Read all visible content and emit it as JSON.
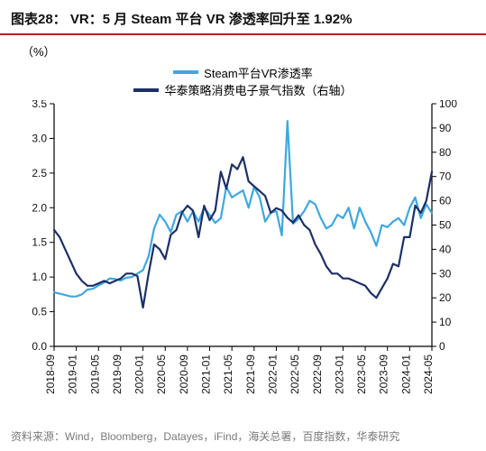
{
  "title": "图表28：  VR：5 月 Steam 平台 VR 渗透率回升至 1.92%",
  "title_fontsize": 15,
  "title_color": "#111111",
  "title_underline_color": "#b02323",
  "legend": {
    "fontsize": 13,
    "text_color": "#111111",
    "items": [
      {
        "label": "Steam平台VR渗透率",
        "color": "#3fa7e0"
      },
      {
        "label": "华泰策略消费电子景气指数（右轴）",
        "color": "#1c2f66"
      }
    ]
  },
  "chart": {
    "type": "line",
    "background_color": "#ffffff",
    "border_color": "#000000",
    "border_width": 1.2,
    "plot_left_border": true,
    "plot_right_border": true,
    "plot_bottom_border": true,
    "plot_top_border": false,
    "y_left": {
      "label": "（%）",
      "label_fontsize": 13,
      "min": 0.0,
      "max": 3.5,
      "tick_step": 0.5,
      "ticks": [
        "0.0",
        "0.5",
        "1.0",
        "1.5",
        "2.0",
        "2.5",
        "3.0",
        "3.5"
      ],
      "tick_fontsize": 12,
      "tick_color": "#111111"
    },
    "y_right": {
      "min": 0,
      "max": 100,
      "tick_step": 10,
      "ticks": [
        "0",
        "10",
        "20",
        "30",
        "40",
        "50",
        "60",
        "70",
        "80",
        "90",
        "100"
      ],
      "tick_fontsize": 12,
      "tick_color": "#111111"
    },
    "x": {
      "tick_labels": [
        "2018-09",
        "2019-01",
        "2019-05",
        "2019-09",
        "2020-01",
        "2020-05",
        "2020-09",
        "2021-01",
        "2021-05",
        "2021-09",
        "2022-01",
        "2022-05",
        "2022-09",
        "2023-01",
        "2023-05",
        "2023-09",
        "2024-01",
        "2024-05"
      ],
      "tick_rotation": -90,
      "tick_fontsize": 12,
      "tick_color": "#111111"
    },
    "series": [
      {
        "name": "Steam平台VR渗透率",
        "axis": "left",
        "color": "#3fa7e0",
        "line_width": 2.2,
        "values": [
          0.78,
          0.76,
          0.74,
          0.72,
          0.72,
          0.75,
          0.82,
          0.83,
          0.88,
          0.92,
          0.98,
          0.97,
          0.95,
          0.99,
          1.0,
          1.05,
          1.1,
          1.3,
          1.7,
          1.9,
          1.8,
          1.65,
          1.9,
          1.95,
          1.8,
          1.95,
          1.8,
          2.0,
          1.9,
          1.78,
          1.85,
          2.3,
          2.15,
          2.2,
          2.25,
          2.0,
          2.3,
          2.15,
          1.8,
          1.93,
          1.95,
          1.6,
          3.25,
          1.77,
          1.84,
          1.95,
          2.1,
          2.05,
          1.85,
          1.7,
          1.75,
          1.9,
          1.85,
          2.0,
          1.7,
          2.0,
          1.8,
          1.65,
          1.45,
          1.75,
          1.72,
          1.8,
          1.85,
          1.75,
          2.0,
          2.15,
          1.85,
          2.05,
          1.92
        ]
      },
      {
        "name": "华泰策略消费电子景气指数（右轴）",
        "axis": "right",
        "color": "#1c2f66",
        "line_width": 2.2,
        "values": [
          48,
          45,
          40,
          35,
          30,
          27,
          25,
          25,
          26,
          27,
          26,
          27,
          28,
          30,
          30,
          29,
          16,
          30,
          42,
          40,
          36,
          46,
          48,
          55,
          58,
          56,
          45,
          58,
          52,
          56,
          72,
          65,
          75,
          73,
          78,
          68,
          66,
          64,
          62,
          55,
          57,
          56,
          53,
          51,
          54,
          50,
          48,
          42,
          38,
          33,
          30,
          30,
          28,
          28,
          27,
          26,
          25,
          22,
          20,
          24,
          28,
          34,
          33,
          45,
          45,
          58,
          55,
          60,
          72
        ]
      }
    ]
  },
  "footnote": {
    "text": "资料来源：Wind，Bloomberg，Datayes，iFind，海关总署，百度指数，华泰研究",
    "fontsize": 12,
    "color": "#7a7a7a"
  }
}
